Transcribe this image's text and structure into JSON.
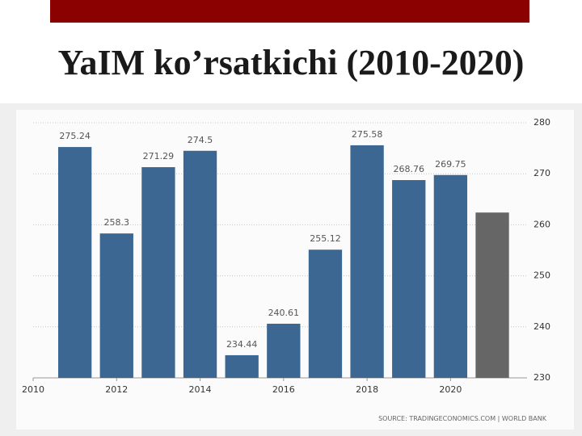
{
  "chart_data": {
    "type": "bar",
    "title": "YaIM ko’rsatkichi (2010-2020)",
    "source": "SOURCE: TRADINGECONOMICS.COM | WORLD BANK",
    "x": [
      2011,
      2012,
      2013,
      2014,
      2015,
      2016,
      2017,
      2018,
      2019,
      2020,
      2021
    ],
    "values": [
      275.24,
      258.3,
      271.29,
      274.5,
      234.44,
      240.61,
      255.12,
      275.58,
      268.76,
      269.75,
      262.4
    ],
    "value_labels": [
      "275.24",
      "258.3",
      "271.29",
      "274.5",
      "234.44",
      "240.61",
      "255.12",
      "275.58",
      "268.76",
      "269.75",
      null
    ],
    "colors": [
      "#3b6792",
      "#3b6792",
      "#3b6792",
      "#3b6792",
      "#3b6792",
      "#3b6792",
      "#3b6792",
      "#3b6792",
      "#3b6792",
      "#3b6792",
      "#666666"
    ],
    "xlim": [
      2010,
      2021.6
    ],
    "xticks": [
      2010,
      2012,
      2014,
      2016,
      2018,
      2020
    ],
    "ylim": [
      230,
      280
    ],
    "yticks": [
      230,
      240,
      250,
      260,
      270,
      280
    ],
    "y_axis_side": "right",
    "grid": true
  }
}
